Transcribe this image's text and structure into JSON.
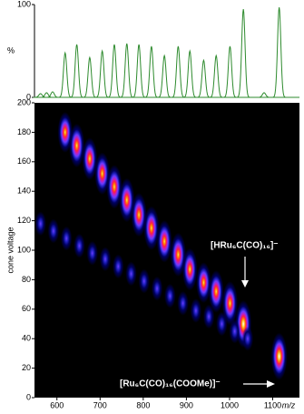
{
  "chart_data": [
    {
      "type": "spectrum",
      "ylabel": "%",
      "xlim": [
        548,
        1162
      ],
      "ylim": [
        0,
        100
      ],
      "yticks": [
        0,
        100
      ],
      "color": "#2e8b2e",
      "x": [
        562,
        576,
        590,
        619,
        646,
        676,
        705,
        733,
        762,
        790,
        819,
        849,
        881,
        908,
        940,
        969,
        1001,
        1032,
        1080,
        1115
      ],
      "values": [
        4,
        5,
        6,
        48,
        57,
        43,
        50,
        57,
        58,
        57,
        55,
        45,
        55,
        50,
        40,
        45,
        55,
        95,
        5,
        97
      ]
    },
    {
      "type": "heatmap",
      "ylabel": "cone voltage",
      "xlabel": "m/z",
      "xlim": [
        548,
        1162
      ],
      "ylim": [
        0,
        200
      ],
      "xticks": [
        600,
        700,
        800,
        900,
        1000,
        1100
      ],
      "yticks": [
        0,
        20,
        40,
        60,
        80,
        100,
        120,
        140,
        160,
        180,
        200
      ],
      "colormap": [
        "#000060",
        "#2020c0",
        "#6a3cff",
        "#c020c0",
        "#ff2040",
        "#ff8c00",
        "#ffe060",
        "#ffffff"
      ],
      "x": [
        619,
        646,
        676,
        705,
        733,
        762,
        790,
        819,
        849,
        881,
        908,
        940,
        969,
        1001,
        1032,
        1115,
        562,
        592,
        622,
        652,
        682,
        712,
        742,
        772,
        802,
        832,
        862,
        892,
        922,
        952,
        982,
        1012,
        1042
      ],
      "y": [
        180,
        171,
        162,
        152,
        143,
        134,
        124,
        115,
        106,
        97,
        87,
        78,
        72,
        64,
        50,
        28,
        118,
        113,
        108,
        103,
        98,
        94,
        89,
        84,
        79,
        74,
        69,
        64,
        59,
        55,
        50,
        45,
        40
      ],
      "intensity": [
        0.8,
        0.9,
        0.85,
        0.85,
        0.9,
        0.9,
        0.9,
        0.9,
        0.85,
        0.9,
        0.85,
        0.8,
        0.85,
        0.9,
        1,
        1,
        0.3,
        0.3,
        0.3,
        0.3,
        0.3,
        0.3,
        0.3,
        0.3,
        0.3,
        0.3,
        0.3,
        0.3,
        0.3,
        0.3,
        0.3,
        0.3,
        0.3
      ],
      "annotations": [
        "[HRu₆C(CO)₁₆]⁻",
        "[Ru₆C(CO)₁₆(COOMe)]⁻"
      ]
    }
  ]
}
